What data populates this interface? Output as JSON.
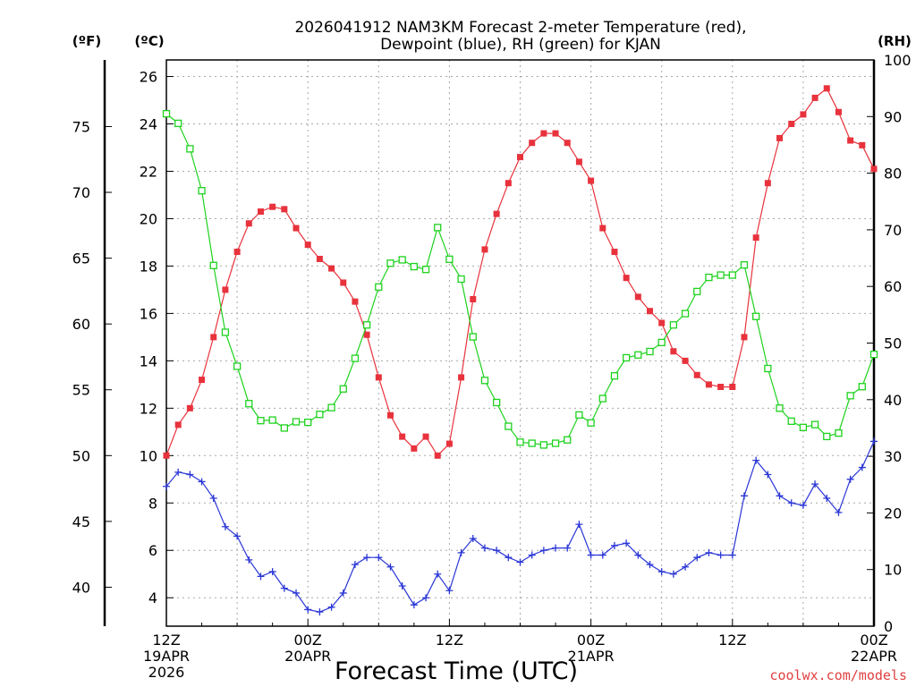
{
  "chart_data": {
    "type": "line",
    "title_line1": "2026041912 NAM3KM Forecast 2-meter Temperature (red),",
    "title_line2": "Dewpoint (blue), RH (green) for KJAN",
    "xlabel": "Forecast Time (UTC)",
    "unit_f": "(ºF)",
    "unit_c": "(ºC)",
    "unit_rh": "(RH)",
    "credit": "coolwx.com/models",
    "xlim": [
      0,
      60
    ],
    "ylim_c": [
      2.8,
      26.7
    ],
    "ylim_rh": [
      0,
      100
    ],
    "x_ticks": [
      {
        "x": 0,
        "line1": "12Z",
        "line2": "19APR",
        "line3": "2026"
      },
      {
        "x": 12,
        "line1": "00Z",
        "line2": "20APR",
        "line3": ""
      },
      {
        "x": 24,
        "line1": "12Z",
        "line2": "",
        "line3": ""
      },
      {
        "x": 36,
        "line1": "00Z",
        "line2": "21APR",
        "line3": ""
      },
      {
        "x": 48,
        "line1": "12Z",
        "line2": "",
        "line3": ""
      },
      {
        "x": 60,
        "line1": "00Z",
        "line2": "22APR",
        "line3": ""
      }
    ],
    "y_ticks_c": [
      "4",
      "6",
      "8",
      "10",
      "12",
      "14",
      "16",
      "18",
      "20",
      "22",
      "24",
      "26"
    ],
    "y_ticks_f": [
      "40",
      "45",
      "50",
      "55",
      "60",
      "65",
      "70",
      "75"
    ],
    "y_ticks_rh": [
      "0",
      "10",
      "20",
      "30",
      "40",
      "50",
      "60",
      "70",
      "80",
      "90",
      "100"
    ],
    "grid": true,
    "series": [
      {
        "name": "2-meter Temperature",
        "color": "#e8323c",
        "marker": "filled-square",
        "values": [
          10.0,
          11.3,
          12.0,
          13.2,
          15.0,
          17.0,
          18.6,
          19.8,
          20.3,
          20.5,
          20.4,
          19.6,
          18.9,
          18.3,
          17.9,
          17.3,
          16.5,
          15.1,
          13.3,
          11.7,
          10.8,
          10.3,
          10.8,
          10.0,
          10.5,
          13.3,
          16.6,
          18.7,
          20.2,
          21.5,
          22.6,
          23.2,
          23.6,
          23.6,
          23.2,
          22.4,
          21.6,
          19.6,
          18.6,
          17.5,
          16.7,
          16.1,
          15.6,
          14.4,
          14.0,
          13.4,
          13.0,
          12.9,
          12.9,
          15.0,
          19.2,
          21.5,
          23.4,
          24.0,
          24.4,
          25.1,
          25.5,
          24.5,
          23.3,
          23.1,
          22.1
        ]
      },
      {
        "name": "Dewpoint",
        "color": "#2a36d6",
        "marker": "plus",
        "values": [
          8.7,
          9.3,
          9.2,
          8.9,
          8.2,
          7.0,
          6.6,
          5.6,
          4.9,
          5.1,
          4.4,
          4.2,
          3.5,
          3.4,
          3.6,
          4.2,
          5.4,
          5.7,
          5.7,
          5.3,
          4.5,
          3.7,
          4.0,
          5.0,
          4.3,
          5.9,
          6.5,
          6.1,
          6.0,
          5.7,
          5.5,
          5.8,
          6.0,
          6.1,
          6.1,
          7.1,
          5.8,
          5.8,
          6.2,
          6.3,
          5.8,
          5.4,
          5.1,
          5.0,
          5.3,
          5.7,
          5.9,
          5.8,
          5.8,
          8.3,
          9.8,
          9.2,
          8.3,
          8.0,
          7.9,
          8.8,
          8.2,
          7.6,
          9.0,
          9.5,
          10.6
        ]
      },
      {
        "name": "RH",
        "color": "#1ed21e",
        "marker": "open-square",
        "values": [
          90.5,
          88.8,
          84.3,
          76.9,
          63.7,
          51.9,
          45.9,
          39.3,
          36.3,
          36.4,
          35.0,
          36.1,
          36.0,
          37.4,
          38.6,
          41.9,
          47.3,
          53.2,
          59.9,
          64.1,
          64.7,
          63.5,
          63.0,
          70.4,
          64.8,
          61.3,
          51.1,
          43.4,
          39.5,
          35.3,
          32.5,
          32.3,
          32.0,
          32.3,
          32.9,
          37.3,
          35.9,
          40.2,
          44.2,
          47.4,
          47.9,
          48.5,
          50.1,
          53.2,
          55.2,
          59.1,
          61.6,
          62.0,
          62.0,
          63.8,
          54.7,
          45.5,
          38.5,
          36.2,
          35.1,
          35.6,
          33.5,
          34.1,
          40.7,
          42.3,
          48.0
        ]
      }
    ]
  }
}
